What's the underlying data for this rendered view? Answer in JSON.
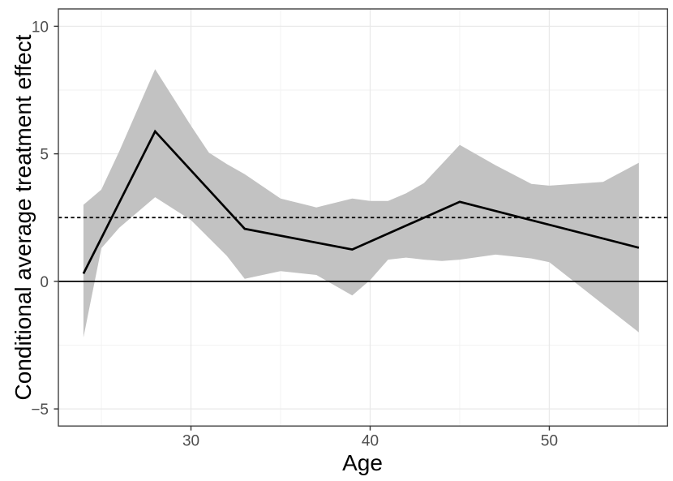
{
  "chart_data": {
    "type": "line",
    "title": "",
    "xlabel": "Age",
    "ylabel": "Conditional average treatment effect",
    "xlim": [
      22.6,
      56.6
    ],
    "ylim": [
      -5.67,
      10.68
    ],
    "x_ticks": [
      30,
      40,
      50
    ],
    "x_tick_labels": [
      "30",
      "40",
      "50"
    ],
    "x_minor_breaks": [
      25,
      35,
      45,
      55
    ],
    "y_ticks": [
      -5,
      0,
      5,
      10
    ],
    "y_tick_labels": [
      "−5",
      "0",
      "5",
      "10"
    ],
    "y_minor_breaks": [
      -2.5,
      2.5,
      7.5
    ],
    "grid": true,
    "legend": "none",
    "series": [
      {
        "name": "conditional-average-treatment-effect",
        "type": "line",
        "x": [
          24,
          28,
          33,
          39,
          45,
          55
        ],
        "y": [
          0.3,
          5.88,
          2.06,
          1.25,
          3.12,
          1.32
        ]
      }
    ],
    "ribbon": {
      "name": "confidence-band",
      "x": [
        24,
        25,
        26,
        28,
        30,
        31,
        32,
        33,
        35,
        37,
        39,
        40,
        41,
        42,
        43,
        44,
        45,
        47,
        49,
        50,
        53,
        55
      ],
      "upper": [
        3.0,
        3.6,
        5.1,
        8.32,
        6.1,
        5.05,
        4.6,
        4.2,
        3.25,
        2.9,
        3.25,
        3.15,
        3.15,
        3.45,
        3.85,
        4.6,
        5.35,
        4.55,
        3.82,
        3.75,
        3.9,
        4.65
      ],
      "lower": [
        -2.2,
        1.3,
        2.1,
        3.3,
        2.4,
        1.7,
        1.0,
        0.1,
        0.4,
        0.25,
        -0.55,
        0.05,
        0.85,
        0.93,
        0.85,
        0.8,
        0.85,
        1.05,
        0.9,
        0.75,
        -0.9,
        -2.0
      ]
    },
    "hlines": [
      {
        "name": "zero-line",
        "y": 0,
        "style": "solid"
      },
      {
        "name": "ate-reference-line",
        "y": 2.5,
        "style": "dashed"
      }
    ],
    "colors": {
      "line": "#000000",
      "ribbon": "#c2c2c2",
      "hline": "#000000",
      "grid_major": "#e9e9e9",
      "grid_minor": "#f2f2f2",
      "panel_border": "#404040",
      "tick_mark": "#333333",
      "tick_label": "#4d4d4d",
      "axis_title": "#000000",
      "background": "#ffffff"
    }
  }
}
